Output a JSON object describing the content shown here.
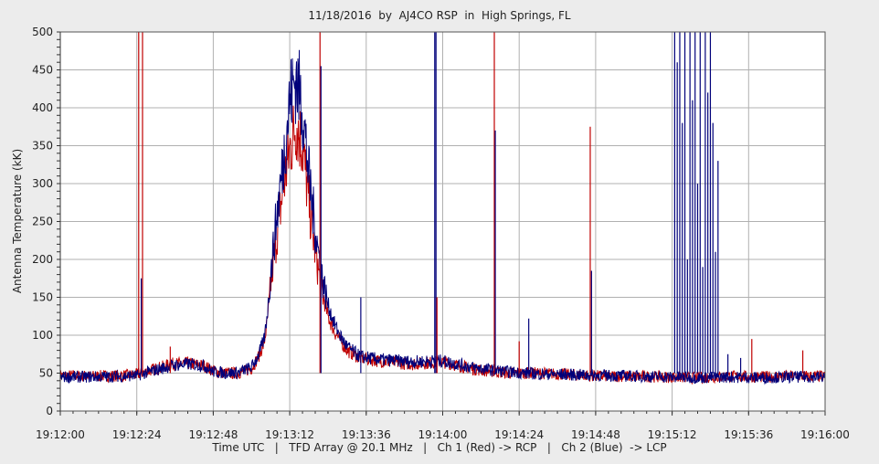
{
  "chart_data": {
    "type": "line",
    "title": "11/18/2016  by  AJ4CO RSP  in  High Springs, FL",
    "xlabel": "Time UTC   |   TFD Array @ 20.1 MHz   |   Ch 1 (Red) -> RCP   |   Ch 2 (Blue)  -> LCP",
    "ylabel": "Antenna Temperature (kK)",
    "x_ticks": [
      "19:12:00",
      "19:12:24",
      "19:12:48",
      "19:13:12",
      "19:13:36",
      "19:14:00",
      "19:14:24",
      "19:14:48",
      "19:15:12",
      "19:15:36",
      "19:16:00"
    ],
    "xlim_seconds": [
      0,
      240
    ],
    "ylim": [
      0,
      500
    ],
    "y_ticks": [
      0,
      50,
      100,
      150,
      200,
      250,
      300,
      350,
      400,
      450,
      500
    ],
    "grid": true,
    "series": [
      {
        "name": "Ch 1 (Red) -> RCP",
        "color": "#c00000",
        "x": [
          0,
          10,
          20,
          24,
          30,
          35,
          40,
          45,
          48,
          52,
          56,
          60,
          62,
          64,
          65,
          66,
          68,
          70,
          72,
          74,
          76,
          78,
          80,
          82,
          84,
          86,
          88,
          90,
          94,
          100,
          110,
          120,
          130,
          140,
          150,
          160,
          170,
          180,
          190,
          200,
          210,
          220,
          230,
          240
        ],
        "y": [
          47,
          46,
          47,
          48,
          56,
          62,
          63,
          60,
          53,
          50,
          50,
          56,
          70,
          90,
          120,
          165,
          235,
          295,
          345,
          380,
          350,
          275,
          210,
          160,
          125,
          105,
          92,
          80,
          70,
          66,
          62,
          65,
          55,
          50,
          50,
          48,
          46,
          46,
          45,
          44,
          46,
          45,
          46,
          46
        ]
      },
      {
        "name": "Ch 2 (Blue) -> LCP",
        "color": "#00007a",
        "x": [
          0,
          10,
          20,
          24,
          30,
          35,
          40,
          45,
          48,
          52,
          56,
          60,
          62,
          64,
          65,
          66,
          68,
          70,
          72,
          74,
          76,
          78,
          80,
          82,
          84,
          86,
          88,
          90,
          94,
          100,
          110,
          120,
          130,
          140,
          150,
          160,
          170,
          180,
          190,
          200,
          210,
          220,
          230,
          240
        ],
        "y": [
          45,
          45,
          46,
          47,
          54,
          60,
          62,
          60,
          52,
          50,
          51,
          58,
          72,
          95,
          130,
          180,
          260,
          330,
          410,
          440,
          400,
          310,
          240,
          180,
          140,
          115,
          98,
          85,
          72,
          68,
          65,
          66,
          57,
          52,
          49,
          48,
          47,
          46,
          45,
          44,
          45,
          44,
          45,
          45
        ]
      }
    ],
    "spikes": [
      {
        "x": 24.6,
        "peak": 500,
        "color": "#c00000"
      },
      {
        "x": 25.8,
        "peak": 500,
        "color": "#c00000"
      },
      {
        "x": 25.4,
        "peak": 175,
        "color": "#00007a"
      },
      {
        "x": 34.5,
        "peak": 85,
        "color": "#c00000"
      },
      {
        "x": 81.5,
        "peak": 500,
        "color": "#c00000"
      },
      {
        "x": 81.8,
        "peak": 455,
        "color": "#00007a"
      },
      {
        "x": 94.3,
        "peak": 150,
        "color": "#00007a"
      },
      {
        "x": 117.5,
        "peak": 500,
        "color": "#00007a"
      },
      {
        "x": 117.9,
        "peak": 500,
        "color": "#00007a"
      },
      {
        "x": 118.2,
        "peak": 150,
        "color": "#c00000"
      },
      {
        "x": 136.2,
        "peak": 500,
        "color": "#c00000"
      },
      {
        "x": 136.5,
        "peak": 370,
        "color": "#00007a"
      },
      {
        "x": 144.0,
        "peak": 92,
        "color": "#c00000"
      },
      {
        "x": 147.0,
        "peak": 122,
        "color": "#00007a"
      },
      {
        "x": 166.3,
        "peak": 375,
        "color": "#c00000"
      },
      {
        "x": 166.7,
        "peak": 185,
        "color": "#00007a"
      },
      {
        "x": 192.8,
        "peak": 500,
        "color": "#00007a"
      },
      {
        "x": 193.6,
        "peak": 460,
        "color": "#00007a"
      },
      {
        "x": 194.4,
        "peak": 500,
        "color": "#00007a"
      },
      {
        "x": 195.2,
        "peak": 380,
        "color": "#00007a"
      },
      {
        "x": 196.0,
        "peak": 500,
        "color": "#00007a"
      },
      {
        "x": 196.8,
        "peak": 200,
        "color": "#00007a"
      },
      {
        "x": 197.6,
        "peak": 500,
        "color": "#00007a"
      },
      {
        "x": 198.4,
        "peak": 410,
        "color": "#00007a"
      },
      {
        "x": 199.2,
        "peak": 500,
        "color": "#00007a"
      },
      {
        "x": 200.0,
        "peak": 300,
        "color": "#00007a"
      },
      {
        "x": 200.8,
        "peak": 500,
        "color": "#00007a"
      },
      {
        "x": 201.6,
        "peak": 190,
        "color": "#00007a"
      },
      {
        "x": 202.4,
        "peak": 500,
        "color": "#00007a"
      },
      {
        "x": 203.2,
        "peak": 420,
        "color": "#00007a"
      },
      {
        "x": 204.0,
        "peak": 500,
        "color": "#00007a"
      },
      {
        "x": 204.8,
        "peak": 380,
        "color": "#00007a"
      },
      {
        "x": 205.6,
        "peak": 210,
        "color": "#00007a"
      },
      {
        "x": 206.4,
        "peak": 330,
        "color": "#00007a"
      },
      {
        "x": 209.5,
        "peak": 75,
        "color": "#00007a"
      },
      {
        "x": 213.5,
        "peak": 70,
        "color": "#00007a"
      },
      {
        "x": 217.0,
        "peak": 95,
        "color": "#c00000"
      },
      {
        "x": 233.0,
        "peak": 80,
        "color": "#c00000"
      }
    ]
  }
}
